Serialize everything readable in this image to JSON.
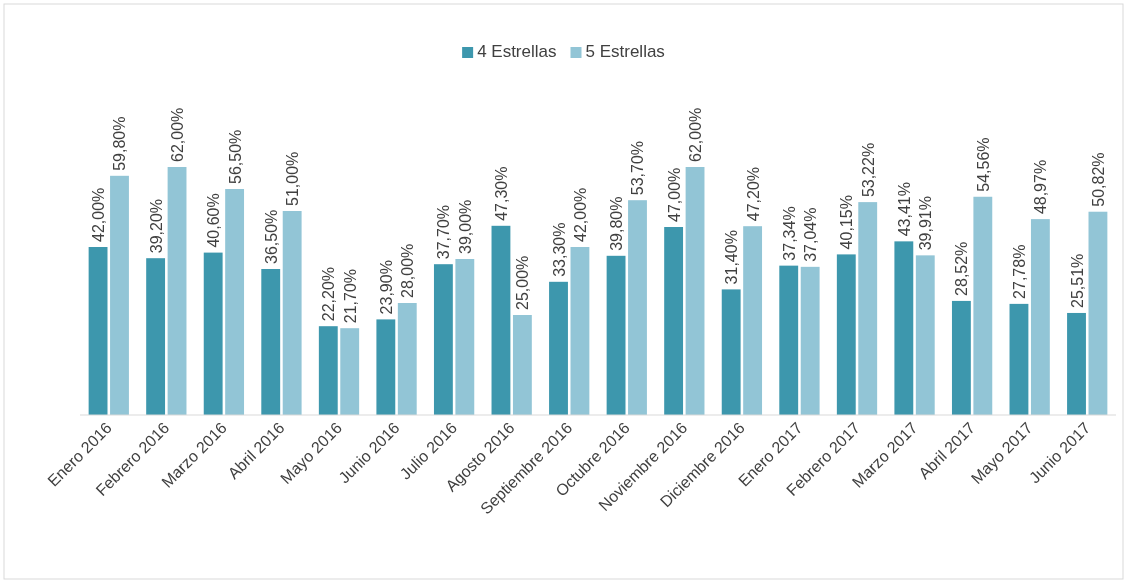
{
  "chart_data": {
    "type": "bar",
    "categories": [
      "Enero 2016",
      "Febrero 2016",
      "Marzo 2016",
      "Abril 2016",
      "Mayo 2016",
      "Junio 2016",
      "Julio 2016",
      "Agosto 2016",
      "Septiembre 2016",
      "Octubre 2016",
      "Noviembre 2016",
      "Diciembre 2016",
      "Enero 2017",
      "Febrero 2017",
      "Marzo 2017",
      "Abril 2017",
      "Mayo 2017",
      "Junio 2017"
    ],
    "series": [
      {
        "name": "4 Estrellas",
        "color": "#3d97ad",
        "values": [
          42.0,
          39.2,
          40.6,
          36.5,
          22.2,
          23.9,
          37.7,
          47.3,
          33.3,
          39.8,
          47.0,
          31.4,
          37.34,
          40.15,
          43.41,
          28.52,
          27.78,
          25.51
        ],
        "value_labels": [
          "42,00%",
          "39,20%",
          "40,60%",
          "36,50%",
          "22,20%",
          "23,90%",
          "37,70%",
          "47,30%",
          "33,30%",
          "39,80%",
          "47,00%",
          "31,40%",
          "37,34%",
          "40,15%",
          "43,41%",
          "28,52%",
          "27,78%",
          "25,51%"
        ]
      },
      {
        "name": "5 Estrellas",
        "color": "#92c5d6",
        "values": [
          59.8,
          62.0,
          56.5,
          51.0,
          21.7,
          28.0,
          39.0,
          25.0,
          42.0,
          53.7,
          62.0,
          47.2,
          37.04,
          53.22,
          39.91,
          54.56,
          48.97,
          50.82
        ],
        "value_labels": [
          "59,80%",
          "62,00%",
          "56,50%",
          "51,00%",
          "21,70%",
          "28,00%",
          "39,00%",
          "25,00%",
          "42,00%",
          "53,70%",
          "62,00%",
          "47,20%",
          "37,04%",
          "53,22%",
          "39,91%",
          "54,56%",
          "48,97%",
          "50,82%"
        ]
      }
    ],
    "legend": "top"
  }
}
